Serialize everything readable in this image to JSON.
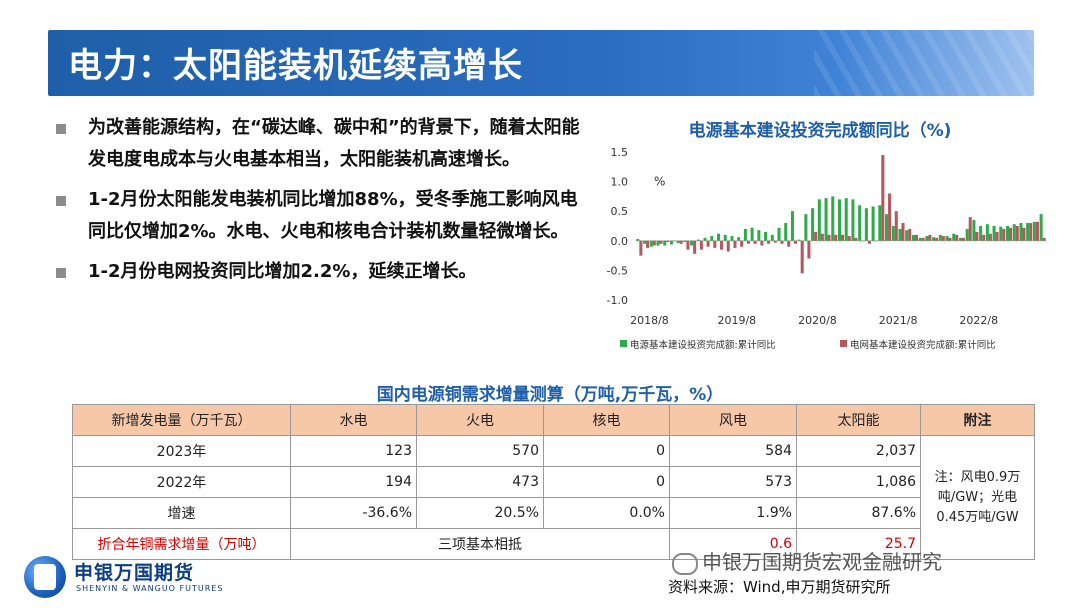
{
  "title": "电力：太阳能装机延续高增长",
  "bullets": [
    "为改善能源结构，在“碳达峰、碳中和”的背景下，随着太阳能发电度电成本与火电基本相当，太阳能装机高速增长。",
    "1-2月份太阳能发电装机同比增加88%，受冬季施工影响风电同比仅增加2%。水电、火电和核电合计装机数量轻微增长。",
    "1-2月份电网投资同比增加2.2%，延续正增长。"
  ],
  "chart": {
    "title": "电源基本建设投资完成额同比（%)",
    "unit_label": "%",
    "legend": [
      "电源基本建设投资完成额:累计同比",
      "电网基本建设投资完成额:累计同比"
    ],
    "colors": {
      "power_source": "#2eaa4a",
      "grid": "#b5575e"
    }
  },
  "chart_data": {
    "type": "bar",
    "ylim": [
      -1.0,
      1.5
    ],
    "yticks": [
      "1.5",
      "1.0",
      "0.5",
      "0.0",
      "-0.5",
      "-1.0"
    ],
    "xticks": [
      "2018/8",
      "2019/8",
      "2020/8",
      "2021/8",
      "2022/8"
    ],
    "series": [
      {
        "name": "电源基本建设投资完成额:累计同比",
        "values": [
          0.03,
          -0.05,
          -0.1,
          -0.08,
          -0.08,
          -0.06,
          -0.04,
          -0.02,
          -0.08,
          0.02,
          0.05,
          0.08,
          0.12,
          0.1,
          0.08,
          0.06,
          0.2,
          0.22,
          0.18,
          0.15,
          0.1,
          0.22,
          0.3,
          0.5,
          0.02,
          0.45,
          0.55,
          0.7,
          0.72,
          0.75,
          0.7,
          0.72,
          0.7,
          0.6,
          0.55,
          0.58,
          0.6,
          0.45,
          0.25,
          0.2,
          0.18,
          0.1,
          0.05,
          0.08,
          0.06,
          0.1,
          0.08,
          0.12,
          0.05,
          0.2,
          0.35,
          0.25,
          0.28,
          0.25,
          0.24,
          0.25,
          0.28,
          0.3,
          0.3,
          0.32,
          0.45
        ]
      },
      {
        "name": "电网基本建设投资完成额:累计同比",
        "values": [
          -0.25,
          -0.12,
          -0.08,
          -0.05,
          -0.02,
          0.0,
          -0.05,
          -0.15,
          -0.22,
          -0.15,
          -0.1,
          -0.12,
          -0.15,
          -0.18,
          -0.12,
          -0.1,
          -0.05,
          -0.05,
          -0.08,
          -0.05,
          -0.03,
          -0.05,
          -0.1,
          -0.05,
          -0.55,
          -0.3,
          0.15,
          0.12,
          0.1,
          0.1,
          0.1,
          0.08,
          0.05,
          0.0,
          -0.05,
          0.0,
          1.45,
          0.8,
          0.5,
          0.3,
          0.2,
          0.1,
          0.05,
          0.1,
          0.05,
          0.08,
          0.05,
          0.1,
          0.05,
          0.4,
          0.15,
          0.1,
          0.12,
          0.15,
          0.2,
          0.22,
          0.25,
          0.22,
          0.3,
          0.32,
          0.05
        ]
      }
    ]
  },
  "table": {
    "title": "国内电源铜需求增量测算（万吨,万千瓦，%）",
    "headers": [
      "新增发电量（万千瓦）",
      "水电",
      "火电",
      "核电",
      "风电",
      "太阳能",
      "附注"
    ],
    "rows": [
      {
        "label": "2023年",
        "values": [
          "123",
          "570",
          "0",
          "584",
          "2,037"
        ]
      },
      {
        "label": "2022年",
        "values": [
          "194",
          "473",
          "0",
          "573",
          "1,086"
        ]
      },
      {
        "label": "增速",
        "values": [
          "-36.6%",
          "20.5%",
          "0.0%",
          "1.9%",
          "87.6%"
        ]
      }
    ],
    "copper_row": {
      "label": "折合年铜需求增量（万吨）",
      "merged": "三项基本相抵",
      "wind": "0.6",
      "solar": "25.7"
    },
    "note": "注：风电0.9万吨/GW；光电0.45万吨/GW"
  },
  "logo": {
    "cn": "申银万国期货",
    "en": "SHENYIN & WANGUO FUTURES"
  },
  "watermark": "申银万国期货宏观金融研究",
  "source": "资料来源：Wind,申万期货研究所"
}
